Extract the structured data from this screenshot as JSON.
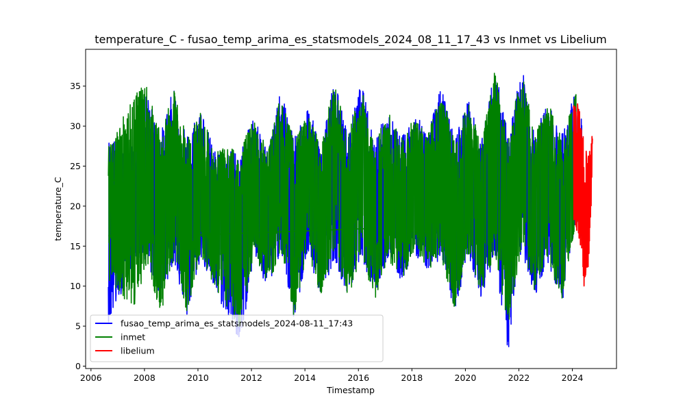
{
  "chart_data": {
    "type": "line",
    "title": "temperature_C - fusao_temp_arima_es_statsmodels_2024_08_11_17_43 vs Inmet vs Libelium",
    "xlabel": "Timestamp",
    "ylabel": "temperature_C",
    "xlim": [
      2005.8,
      2025.65
    ],
    "ylim": [
      -0.3,
      39.6
    ],
    "x_ticks": [
      2006,
      2008,
      2010,
      2012,
      2014,
      2016,
      2018,
      2020,
      2022,
      2024
    ],
    "x_tick_labels": [
      "2006",
      "2008",
      "2010",
      "2012",
      "2014",
      "2016",
      "2018",
      "2020",
      "2022",
      "2024"
    ],
    "y_ticks": [
      0,
      5,
      10,
      15,
      20,
      25,
      30,
      35
    ],
    "y_tick_labels": [
      "0",
      "5",
      "10",
      "15",
      "20",
      "25",
      "30",
      "35"
    ],
    "legend_position": "lower-left",
    "series": [
      {
        "name": "fusao_temp_arima_es_statsmodels_2024-08-11_17:43",
        "color": "#0000ff",
        "description": "daily-oscillating hourly temperature, 2006.7 to 2024.4",
        "x_range": [
          2006.65,
          2024.35
        ],
        "envelope": [
          {
            "x": 2006.7,
            "min": 5.5,
            "max": 28.5
          },
          {
            "x": 2007.6,
            "min": 13.0,
            "max": 27.5
          },
          {
            "x": 2008.0,
            "min": 13.5,
            "max": 35.0
          },
          {
            "x": 2008.6,
            "min": 8.5,
            "max": 29.0
          },
          {
            "x": 2009.1,
            "min": 13.0,
            "max": 35.0
          },
          {
            "x": 2009.6,
            "min": 6.0,
            "max": 29.0
          },
          {
            "x": 2010.1,
            "min": 13.5,
            "max": 32.5
          },
          {
            "x": 2010.6,
            "min": 9.5,
            "max": 27.0
          },
          {
            "x": 2011.6,
            "min": 2.8,
            "max": 27.0
          },
          {
            "x": 2012.1,
            "min": 14.0,
            "max": 31.5
          },
          {
            "x": 2012.6,
            "min": 9.0,
            "max": 27.0
          },
          {
            "x": 2013.1,
            "min": 14.5,
            "max": 34.5
          },
          {
            "x": 2013.6,
            "min": 5.5,
            "max": 28.5
          },
          {
            "x": 2014.1,
            "min": 14.0,
            "max": 32.5
          },
          {
            "x": 2014.6,
            "min": 8.5,
            "max": 28.0
          },
          {
            "x": 2015.1,
            "min": 13.5,
            "max": 36.0
          },
          {
            "x": 2015.6,
            "min": 8.5,
            "max": 29.0
          },
          {
            "x": 2016.1,
            "min": 14.0,
            "max": 35.5
          },
          {
            "x": 2016.6,
            "min": 8.5,
            "max": 28.5
          },
          {
            "x": 2017.1,
            "min": 13.5,
            "max": 32.0
          },
          {
            "x": 2017.6,
            "min": 10.5,
            "max": 28.5
          },
          {
            "x": 2018.1,
            "min": 14.0,
            "max": 31.5
          },
          {
            "x": 2018.6,
            "min": 12.0,
            "max": 29.5
          },
          {
            "x": 2019.1,
            "min": 13.5,
            "max": 35.0
          },
          {
            "x": 2019.6,
            "min": 6.5,
            "max": 28.5
          },
          {
            "x": 2020.1,
            "min": 14.0,
            "max": 33.5
          },
          {
            "x": 2020.6,
            "min": 8.5,
            "max": 28.0
          },
          {
            "x": 2021.1,
            "min": 13.5,
            "max": 37.5
          },
          {
            "x": 2021.6,
            "min": 1.5,
            "max": 29.0
          },
          {
            "x": 2022.1,
            "min": 14.5,
            "max": 37.5
          },
          {
            "x": 2022.6,
            "min": 8.5,
            "max": 29.5
          },
          {
            "x": 2023.1,
            "min": 13.0,
            "max": 33.0
          },
          {
            "x": 2023.6,
            "min": 7.5,
            "max": 29.0
          },
          {
            "x": 2024.1,
            "min": 17.0,
            "max": 34.5
          },
          {
            "x": 2024.35,
            "min": 15.0,
            "max": 31.0
          }
        ]
      },
      {
        "name": "inmet",
        "color": "#008000",
        "description": "hourly temperature, 2006.7 to 2024.15",
        "x_range": [
          2006.65,
          2024.15
        ],
        "envelope": [
          {
            "x": 2006.7,
            "min": 10.5,
            "max": 27.5
          },
          {
            "x": 2007.6,
            "min": 7.0,
            "max": 34.5
          },
          {
            "x": 2008.1,
            "min": 13.0,
            "max": 35.0
          },
          {
            "x": 2008.6,
            "min": 6.0,
            "max": 29.0
          },
          {
            "x": 2009.1,
            "min": 13.5,
            "max": 34.5
          },
          {
            "x": 2009.6,
            "min": 6.5,
            "max": 28.5
          },
          {
            "x": 2010.1,
            "min": 14.0,
            "max": 32.0
          },
          {
            "x": 2010.6,
            "min": 10.0,
            "max": 27.0
          },
          {
            "x": 2011.6,
            "min": 4.5,
            "max": 27.5
          },
          {
            "x": 2012.1,
            "min": 14.5,
            "max": 31.0
          },
          {
            "x": 2012.6,
            "min": 9.5,
            "max": 27.0
          },
          {
            "x": 2013.1,
            "min": 14.5,
            "max": 34.0
          },
          {
            "x": 2013.6,
            "min": 6.0,
            "max": 28.0
          },
          {
            "x": 2014.1,
            "min": 14.5,
            "max": 31.5
          },
          {
            "x": 2014.6,
            "min": 8.5,
            "max": 28.0
          },
          {
            "x": 2015.1,
            "min": 13.5,
            "max": 35.5
          },
          {
            "x": 2015.6,
            "min": 8.0,
            "max": 29.0
          },
          {
            "x": 2016.1,
            "min": 14.0,
            "max": 35.0
          },
          {
            "x": 2016.6,
            "min": 8.0,
            "max": 28.0
          },
          {
            "x": 2017.1,
            "min": 13.5,
            "max": 32.0
          },
          {
            "x": 2017.6,
            "min": 10.5,
            "max": 28.5
          },
          {
            "x": 2018.1,
            "min": 14.0,
            "max": 31.0
          },
          {
            "x": 2018.6,
            "min": 12.0,
            "max": 29.0
          },
          {
            "x": 2019.1,
            "min": 13.5,
            "max": 34.5
          },
          {
            "x": 2019.6,
            "min": 7.0,
            "max": 28.0
          },
          {
            "x": 2020.1,
            "min": 14.0,
            "max": 33.5
          },
          {
            "x": 2020.6,
            "min": 9.0,
            "max": 28.0
          },
          {
            "x": 2021.1,
            "min": 14.0,
            "max": 37.0
          },
          {
            "x": 2021.6,
            "min": 5.0,
            "max": 28.5
          },
          {
            "x": 2022.1,
            "min": 15.0,
            "max": 37.0
          },
          {
            "x": 2022.6,
            "min": 9.0,
            "max": 29.0
          },
          {
            "x": 2023.1,
            "min": 13.0,
            "max": 33.0
          },
          {
            "x": 2023.6,
            "min": 8.0,
            "max": 28.5
          },
          {
            "x": 2024.1,
            "min": 17.5,
            "max": 34.0
          }
        ],
        "gap_connectors": [
          {
            "x": [
              2006.65,
              2007.55
            ],
            "y": [
              16.3,
              16.4
            ]
          },
          {
            "x": [
              2006.75,
              2007.6
            ],
            "y": [
              23.5,
              21.5
            ]
          },
          {
            "x": [
              2010.0,
              2016.4
            ],
            "y": [
              16.4,
              17.2
            ]
          }
        ]
      },
      {
        "name": "libelium",
        "color": "#ff0000",
        "description": "sensor temperature, 2024.05 to 2024.75",
        "x_range": [
          2024.05,
          2024.75
        ],
        "envelope": [
          {
            "x": 2024.1,
            "min": 17.5,
            "max": 33.5
          },
          {
            "x": 2024.3,
            "min": 15.0,
            "max": 32.0
          },
          {
            "x": 2024.45,
            "min": 8.8,
            "max": 27.5
          },
          {
            "x": 2024.6,
            "min": 12.5,
            "max": 27.0
          },
          {
            "x": 2024.75,
            "min": 23.5,
            "max": 29.0
          }
        ]
      }
    ]
  }
}
